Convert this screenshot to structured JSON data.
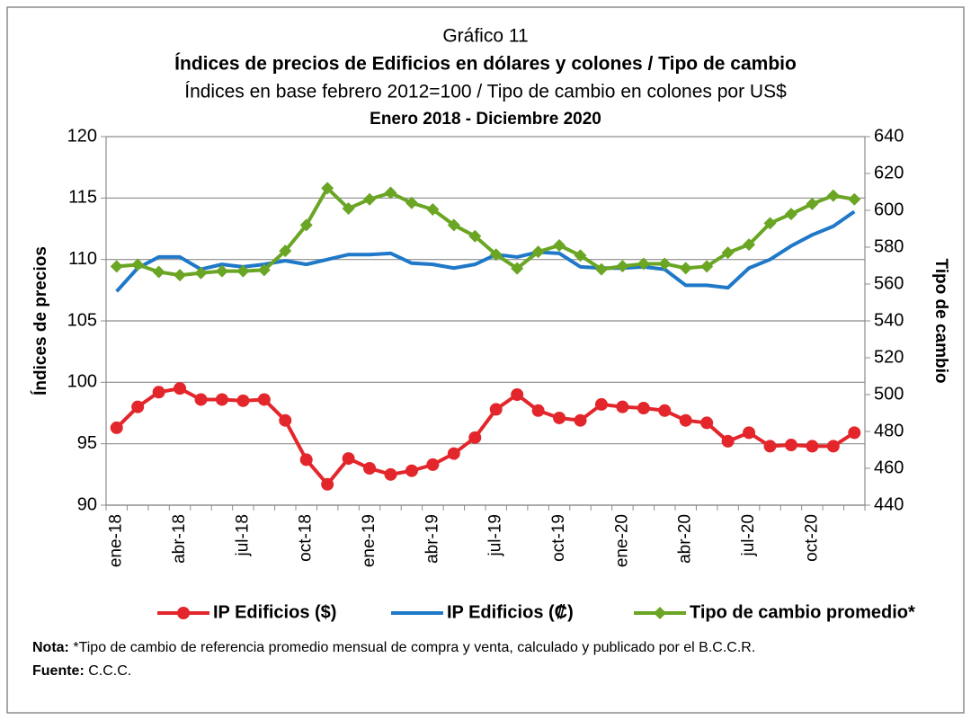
{
  "chart_data": {
    "type": "line",
    "pretitle": "Gráfico 11",
    "title": "Índices de precios de Edificios en dólares y colones / Tipo de cambio",
    "subtitle": "Índices en base febrero 2012=100 / Tipo de cambio en colones por US$",
    "period": "Enero 2018 - Diciembre 2020",
    "ylabel": "Índices de precios",
    "y2label": "Tipo de cambio",
    "categories": [
      "ene-18",
      null,
      null,
      "abr-18",
      null,
      null,
      "jul-18",
      null,
      null,
      "oct-18",
      null,
      null,
      "ene-19",
      null,
      null,
      "abr-19",
      null,
      null,
      "jul-19",
      null,
      null,
      "oct-19",
      null,
      null,
      "ene-20",
      null,
      null,
      "abr-20",
      null,
      null,
      "jul-20",
      null,
      null,
      "oct-20",
      null,
      null
    ],
    "ylim": [
      90,
      120
    ],
    "yticks": [
      90,
      95,
      100,
      105,
      110,
      115,
      120
    ],
    "y2lim": [
      440,
      640
    ],
    "y2ticks": [
      440,
      460,
      480,
      500,
      520,
      540,
      560,
      580,
      600,
      620,
      640
    ],
    "grid": true,
    "legend": "bottom",
    "series": [
      {
        "name": "IP Edificios ($)",
        "color": "#e3262b",
        "marker": "circle",
        "values": [
          96.3,
          98.0,
          99.2,
          99.5,
          98.6,
          98.6,
          98.5,
          98.6,
          96.9,
          93.7,
          91.7,
          93.8,
          93.0,
          92.5,
          92.8,
          93.3,
          94.2,
          95.5,
          97.8,
          99.0,
          97.7,
          97.1,
          96.9,
          98.2,
          98.0,
          97.9,
          97.7,
          96.9,
          96.7,
          95.2,
          95.9,
          94.8,
          94.9,
          94.8,
          94.8,
          95.9
        ]
      },
      {
        "name": "IP Edificios (₡)",
        "color": "#1f78c8",
        "marker": "none",
        "values": [
          107.4,
          109.3,
          110.2,
          110.2,
          109.2,
          109.6,
          109.4,
          109.6,
          109.9,
          109.6,
          110.0,
          110.4,
          110.4,
          110.5,
          109.7,
          109.6,
          109.3,
          109.6,
          110.4,
          110.2,
          110.6,
          110.5,
          109.4,
          109.3,
          109.3,
          109.4,
          109.2,
          107.9,
          107.9,
          107.7,
          109.3,
          110.0,
          111.1,
          112.0,
          112.7,
          113.9
        ]
      },
      {
        "name": "Tipo de cambio promedio*",
        "color": "#6aa524",
        "marker": "diamond",
        "axis": "y2",
        "values": [
          569.6,
          570.5,
          566.6,
          564.8,
          566.0,
          567.0,
          567.0,
          567.6,
          578.0,
          592.0,
          612.0,
          601.0,
          606.0,
          609.5,
          604.0,
          600.5,
          592.0,
          586.0,
          576.0,
          568.5,
          577.5,
          581.0,
          575.5,
          568.0,
          569.7,
          571.0,
          571.0,
          568.6,
          569.6,
          577.0,
          581.4,
          593.0,
          598.0,
          603.5,
          608.0,
          606.0
        ]
      }
    ],
    "note_label": "Nota:",
    "note": "*Tipo de cambio de referencia promedio mensual de compra y venta, calculado y publicado por el B.C.C.R.",
    "source_label": "Fuente:",
    "source": "C.C.C."
  }
}
